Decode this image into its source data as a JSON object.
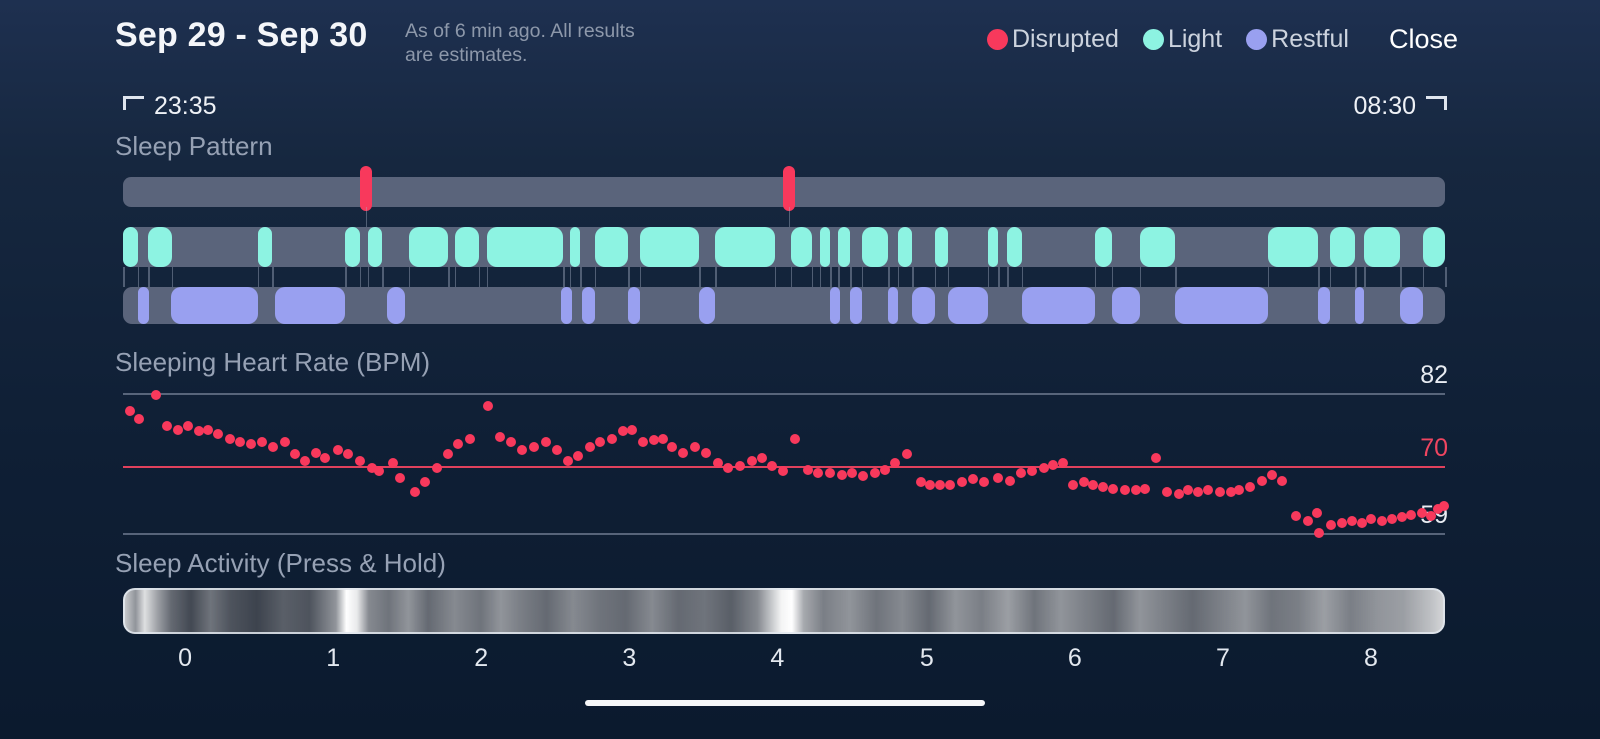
{
  "header": {
    "title": "Sep 29 - Sep 30",
    "subtitle": "As of 6 min ago. All results are estimates.",
    "close_label": "Close",
    "legend": [
      {
        "label": "Disrupted",
        "color": "#f8395c"
      },
      {
        "label": "Light",
        "color": "#8df3e2"
      },
      {
        "label": "Restful",
        "color": "#99a0f0"
      }
    ]
  },
  "time_range": {
    "start": "23:35",
    "end": "08:30"
  },
  "chart_data": [
    {
      "type": "timeline",
      "title": "Sleep Pattern",
      "track_base_color": "#5a647b",
      "tracks": [
        {
          "name": "Disrupted",
          "color": "#f8395c",
          "events_pct": [
            17.9,
            49.9
          ]
        },
        {
          "name": "Light",
          "color": "#8df3e2",
          "segments_pct": [
            [
              0,
              1.1
            ],
            [
              1.9,
              3.7
            ],
            [
              10.2,
              11.3
            ],
            [
              16.8,
              17.9
            ],
            [
              18.5,
              19.6
            ],
            [
              21.6,
              24.6
            ],
            [
              25.1,
              26.9
            ],
            [
              27.5,
              33.3
            ],
            [
              33.8,
              34.6
            ],
            [
              35.7,
              38.2
            ],
            [
              39.1,
              43.6
            ],
            [
              44.8,
              49.3
            ],
            [
              50.5,
              52.1
            ],
            [
              52.7,
              53.5
            ],
            [
              54.1,
              55.0
            ],
            [
              55.9,
              57.9
            ],
            [
              58.6,
              59.7
            ],
            [
              61.4,
              62.4
            ],
            [
              65.4,
              66.2
            ],
            [
              66.9,
              68.0
            ],
            [
              73.5,
              74.8
            ],
            [
              76.9,
              79.6
            ],
            [
              86.6,
              90.4
            ],
            [
              91.3,
              93.2
            ],
            [
              93.9,
              96.6
            ],
            [
              98.3,
              100
            ]
          ]
        },
        {
          "name": "Restful",
          "color": "#99a0f0",
          "segments_pct": [
            [
              1.1,
              2.0
            ],
            [
              3.6,
              10.2
            ],
            [
              11.5,
              16.8
            ],
            [
              20.0,
              21.3
            ],
            [
              33.1,
              34.0
            ],
            [
              34.7,
              35.7
            ],
            [
              38.2,
              39.1
            ],
            [
              43.6,
              44.8
            ],
            [
              53.5,
              54.2
            ],
            [
              55.0,
              55.9
            ],
            [
              57.9,
              58.6
            ],
            [
              59.7,
              61.4
            ],
            [
              62.4,
              65.4
            ],
            [
              68.0,
              73.5
            ],
            [
              74.8,
              76.9
            ],
            [
              79.6,
              86.6
            ],
            [
              90.4,
              91.3
            ],
            [
              93.2,
              93.9
            ],
            [
              96.6,
              98.3
            ]
          ]
        }
      ]
    },
    {
      "type": "scatter",
      "title": "Sleeping Heart Rate (BPM)",
      "x_start_label": "23:35",
      "x_end_label": "08:30",
      "x_range_hours": [
        0,
        8.9167
      ],
      "ylim": [
        59,
        82
      ],
      "dot_color": "#f8395c",
      "gridlines": [
        {
          "value": 82,
          "color": "rgba(148,159,180,0.55)",
          "label_color": "#e8ecf2"
        },
        {
          "value": 70,
          "color": "#e0415c",
          "label_color": "#ef4560"
        },
        {
          "value": 59,
          "color": "rgba(148,159,180,0.55)",
          "label_color": "#e8ecf2"
        }
      ],
      "points": [
        [
          0.05,
          79.1
        ],
        [
          0.11,
          77.7
        ],
        [
          0.22,
          81.7
        ],
        [
          0.3,
          76.5
        ],
        [
          0.37,
          76.0
        ],
        [
          0.44,
          76.5
        ],
        [
          0.51,
          75.7
        ],
        [
          0.57,
          76.0
        ],
        [
          0.64,
          75.3
        ],
        [
          0.72,
          74.5
        ],
        [
          0.79,
          73.9
        ],
        [
          0.86,
          73.6
        ],
        [
          0.94,
          73.9
        ],
        [
          1.01,
          73.1
        ],
        [
          1.09,
          73.9
        ],
        [
          1.16,
          71.9
        ],
        [
          1.23,
          70.9
        ],
        [
          1.3,
          72.2
        ],
        [
          1.36,
          71.4
        ],
        [
          1.45,
          72.6
        ],
        [
          1.52,
          71.9
        ],
        [
          1.6,
          70.9
        ],
        [
          1.68,
          69.7
        ],
        [
          1.73,
          69.2
        ],
        [
          1.82,
          70.5
        ],
        [
          1.87,
          68.1
        ],
        [
          1.97,
          65.8
        ],
        [
          2.04,
          67.3
        ],
        [
          2.12,
          69.7
        ],
        [
          2.19,
          71.9
        ],
        [
          2.26,
          73.6
        ],
        [
          2.34,
          74.5
        ],
        [
          2.46,
          79.9
        ],
        [
          2.54,
          74.8
        ],
        [
          2.62,
          73.9
        ],
        [
          2.69,
          72.6
        ],
        [
          2.77,
          73.1
        ],
        [
          2.85,
          73.9
        ],
        [
          2.93,
          72.7
        ],
        [
          3.0,
          70.9
        ],
        [
          3.07,
          71.7
        ],
        [
          3.15,
          73.1
        ],
        [
          3.22,
          73.9
        ],
        [
          3.3,
          74.5
        ],
        [
          3.37,
          75.7
        ],
        [
          3.43,
          76.0
        ],
        [
          3.51,
          73.9
        ],
        [
          3.58,
          74.3
        ],
        [
          3.64,
          74.5
        ],
        [
          3.7,
          73.1
        ],
        [
          3.78,
          72.2
        ],
        [
          3.86,
          73.1
        ],
        [
          3.93,
          72.2
        ],
        [
          4.01,
          70.5
        ],
        [
          4.08,
          69.7
        ],
        [
          4.16,
          70.0
        ],
        [
          4.24,
          70.9
        ],
        [
          4.31,
          71.4
        ],
        [
          4.38,
          70.0
        ],
        [
          4.45,
          69.2
        ],
        [
          4.53,
          74.5
        ],
        [
          4.62,
          69.4
        ],
        [
          4.69,
          68.9
        ],
        [
          4.77,
          68.9
        ],
        [
          4.85,
          68.6
        ],
        [
          4.92,
          68.9
        ],
        [
          4.99,
          68.4
        ],
        [
          5.07,
          68.9
        ],
        [
          5.14,
          69.4
        ],
        [
          5.21,
          70.5
        ],
        [
          5.29,
          71.9
        ],
        [
          5.38,
          67.3
        ],
        [
          5.44,
          66.9
        ],
        [
          5.51,
          66.9
        ],
        [
          5.58,
          66.9
        ],
        [
          5.66,
          67.3
        ],
        [
          5.73,
          67.8
        ],
        [
          5.81,
          67.3
        ],
        [
          5.9,
          68.1
        ],
        [
          5.98,
          67.6
        ],
        [
          6.06,
          68.9
        ],
        [
          6.13,
          69.2
        ],
        [
          6.21,
          69.7
        ],
        [
          6.27,
          70.2
        ],
        [
          6.34,
          70.5
        ],
        [
          6.41,
          66.9
        ],
        [
          6.48,
          67.3
        ],
        [
          6.54,
          66.9
        ],
        [
          6.61,
          66.5
        ],
        [
          6.68,
          66.2
        ],
        [
          6.76,
          66.1
        ],
        [
          6.83,
          66.1
        ],
        [
          6.89,
          66.2
        ],
        [
          6.97,
          71.4
        ],
        [
          7.04,
          65.8
        ],
        [
          7.12,
          65.4
        ],
        [
          7.18,
          66.1
        ],
        [
          7.25,
          65.8
        ],
        [
          7.32,
          66.1
        ],
        [
          7.4,
          65.8
        ],
        [
          7.47,
          65.8
        ],
        [
          7.53,
          66.1
        ],
        [
          7.6,
          66.5
        ],
        [
          7.68,
          67.6
        ],
        [
          7.75,
          68.6
        ],
        [
          7.82,
          67.6
        ],
        [
          7.91,
          61.8
        ],
        [
          7.99,
          61.0
        ],
        [
          8.05,
          62.3
        ],
        [
          8.07,
          59.0
        ],
        [
          8.15,
          60.3
        ],
        [
          8.22,
          60.7
        ],
        [
          8.29,
          61.0
        ],
        [
          8.36,
          60.7
        ],
        [
          8.42,
          61.3
        ],
        [
          8.49,
          61.0
        ],
        [
          8.56,
          61.3
        ],
        [
          8.63,
          61.6
        ],
        [
          8.69,
          61.9
        ],
        [
          8.76,
          62.3
        ],
        [
          8.82,
          61.8
        ],
        [
          8.87,
          62.9
        ],
        [
          8.91,
          63.4
        ]
      ]
    },
    {
      "type": "heatmap",
      "title": "Sleep Activity (Press & Hold)",
      "x_ticks": [
        0,
        1,
        2,
        3,
        4,
        5,
        6,
        7,
        8
      ],
      "x_tick_positions_pct": [
        4.7,
        15.9,
        27.1,
        38.3,
        49.5,
        60.8,
        72.0,
        83.2,
        94.4
      ],
      "intensity_stops": [
        [
          0,
          0.75
        ],
        [
          0.8,
          0.5
        ],
        [
          1.5,
          0.85
        ],
        [
          2.5,
          0.55
        ],
        [
          3.5,
          0.3
        ],
        [
          5,
          0.15
        ],
        [
          6.5,
          0.35
        ],
        [
          8,
          0.2
        ],
        [
          10,
          0.12
        ],
        [
          12,
          0.25
        ],
        [
          14,
          0.2
        ],
        [
          16,
          0.5
        ],
        [
          16.8,
          1.0
        ],
        [
          17.6,
          0.9
        ],
        [
          18.5,
          0.45
        ],
        [
          20,
          0.35
        ],
        [
          21.5,
          0.5
        ],
        [
          23,
          0.3
        ],
        [
          25,
          0.45
        ],
        [
          27,
          0.35
        ],
        [
          28.5,
          0.5
        ],
        [
          30,
          0.4
        ],
        [
          32,
          0.3
        ],
        [
          34,
          0.45
        ],
        [
          36,
          0.35
        ],
        [
          38,
          0.3
        ],
        [
          40,
          0.45
        ],
        [
          42,
          0.3
        ],
        [
          44,
          0.35
        ],
        [
          46,
          0.25
        ],
        [
          48,
          0.45
        ],
        [
          49.8,
          0.95
        ],
        [
          50.6,
          1.0
        ],
        [
          51.5,
          0.6
        ],
        [
          53,
          0.4
        ],
        [
          55,
          0.5
        ],
        [
          57,
          0.35
        ],
        [
          59,
          0.45
        ],
        [
          61,
          0.3
        ],
        [
          63,
          0.5
        ],
        [
          65,
          0.4
        ],
        [
          67,
          0.55
        ],
        [
          69,
          0.35
        ],
        [
          71,
          0.5
        ],
        [
          73,
          0.4
        ],
        [
          75,
          0.3
        ],
        [
          77,
          0.5
        ],
        [
          79,
          0.4
        ],
        [
          81,
          0.3
        ],
        [
          83,
          0.4
        ],
        [
          85,
          0.5
        ],
        [
          87,
          0.35
        ],
        [
          89,
          0.4
        ],
        [
          91,
          0.55
        ],
        [
          93,
          0.4
        ],
        [
          95,
          0.5
        ],
        [
          97,
          0.55
        ],
        [
          99,
          0.7
        ],
        [
          100,
          0.8
        ]
      ]
    }
  ]
}
